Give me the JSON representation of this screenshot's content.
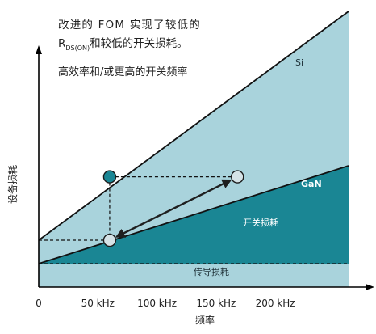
{
  "chart_data": {
    "type": "area",
    "xlabel": "频率",
    "ylabel": "设备损耗",
    "x_ticks": [
      {
        "value": 0,
        "label": "0"
      },
      {
        "value": 50,
        "label": "50 kHz"
      },
      {
        "value": 100,
        "label": "100 kHz"
      },
      {
        "value": 150,
        "label": "150 kHz"
      },
      {
        "value": 200,
        "label": "200 kHz"
      }
    ],
    "xlim": [
      0,
      262
    ],
    "ylim": [
      0,
      100
    ],
    "grid": false,
    "series": [
      {
        "name": "Si",
        "x": [
          0,
          262
        ],
        "values": [
          17,
          102
        ],
        "color": "#a9d3dc"
      },
      {
        "name": "GaN",
        "x": [
          0,
          262
        ],
        "values": [
          8.5,
          44
        ],
        "color": "#1a8694"
      }
    ],
    "conduction_loss_level": 8.5,
    "points": [
      {
        "x": 60,
        "y": 40
      },
      {
        "x": 168,
        "y": 40
      },
      {
        "x": 60,
        "y": 17
      }
    ],
    "annotations": {
      "headline_1": "改进的 FOM 实现了较低的",
      "headline_rds_main": "R",
      "headline_rds_sub": "DS(ON)",
      "headline_rds_rest": "和较低的开关损耗。",
      "headline_2": "高效率和/或更高的开关频率",
      "si_label": "Si",
      "gan_label": "GaN",
      "switching_loss": "开关损耗",
      "conduction_loss": "传导损耗"
    },
    "colors": {
      "si_area": "#a9d3dc",
      "gan_area": "#1a8694",
      "marker_fill": "#d5e2e6",
      "marker_filled": "#1a8694",
      "axis": "#000000"
    }
  }
}
